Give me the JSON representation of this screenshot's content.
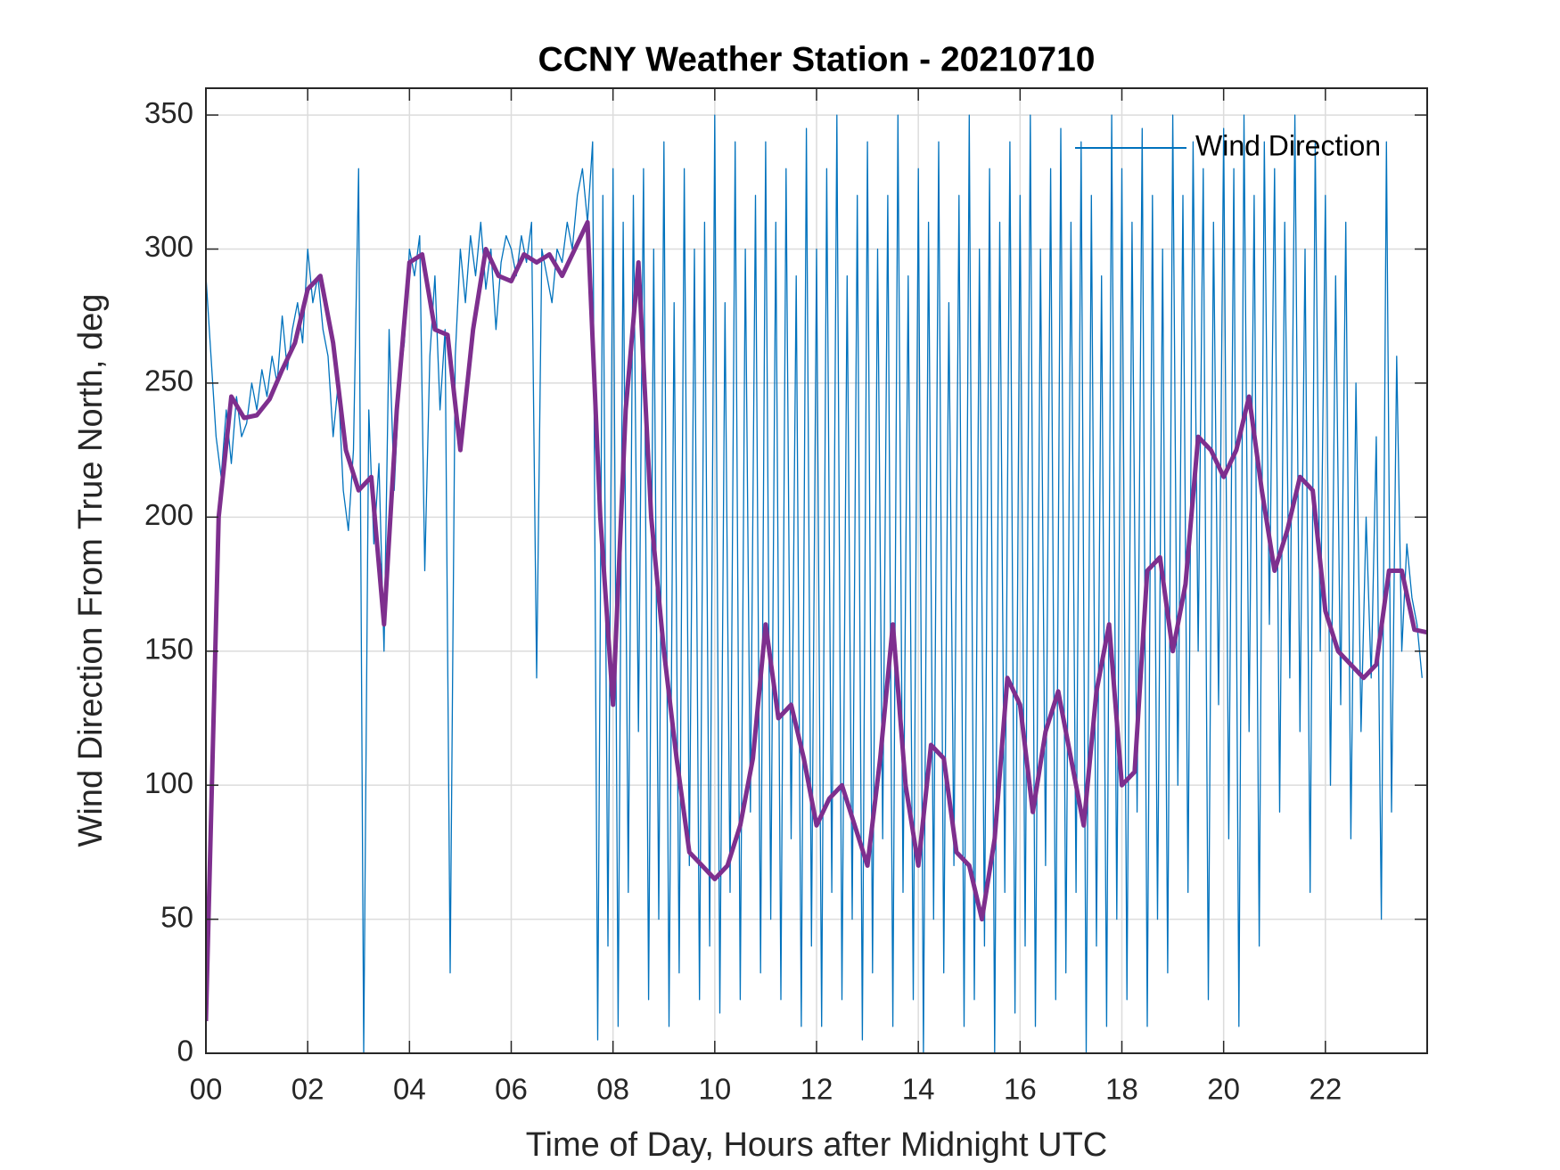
{
  "chart_data": {
    "type": "line",
    "title": "CCNY Weather Station - 20210710",
    "xlabel": "Time of Day, Hours after Midnight UTC",
    "ylabel": "Wind Direction From True North, deg",
    "xlim": [
      0,
      24
    ],
    "ylim": [
      0,
      360
    ],
    "xticks": [
      {
        "value": 0,
        "label": "00"
      },
      {
        "value": 2,
        "label": "02"
      },
      {
        "value": 4,
        "label": "04"
      },
      {
        "value": 6,
        "label": "06"
      },
      {
        "value": 8,
        "label": "08"
      },
      {
        "value": 10,
        "label": "10"
      },
      {
        "value": 12,
        "label": "12"
      },
      {
        "value": 14,
        "label": "14"
      },
      {
        "value": 16,
        "label": "16"
      },
      {
        "value": 18,
        "label": "18"
      },
      {
        "value": 20,
        "label": "20"
      },
      {
        "value": 22,
        "label": "22"
      }
    ],
    "yticks": [
      0,
      50,
      100,
      150,
      200,
      250,
      300,
      350
    ],
    "grid": true,
    "legend": "upper right",
    "series": [
      {
        "name": "Wind Direction",
        "color": "#0072bd",
        "width": 1.3,
        "x": [
          0,
          0.1,
          0.2,
          0.3,
          0.4,
          0.5,
          0.6,
          0.7,
          0.8,
          0.9,
          1,
          1.1,
          1.2,
          1.3,
          1.4,
          1.5,
          1.6,
          1.7,
          1.8,
          1.9,
          2,
          2.1,
          2.2,
          2.3,
          2.4,
          2.5,
          2.6,
          2.7,
          2.8,
          2.9,
          3,
          3.1,
          3.2,
          3.3,
          3.4,
          3.5,
          3.6,
          3.7,
          3.8,
          3.9,
          4,
          4.1,
          4.2,
          4.3,
          4.4,
          4.5,
          4.6,
          4.7,
          4.8,
          4.9,
          5,
          5.1,
          5.2,
          5.3,
          5.4,
          5.5,
          5.6,
          5.7,
          5.8,
          5.9,
          6,
          6.1,
          6.2,
          6.3,
          6.4,
          6.5,
          6.6,
          6.7,
          6.8,
          6.9,
          7,
          7.1,
          7.2,
          7.3,
          7.4,
          7.5,
          7.6,
          7.7,
          7.8,
          7.9,
          8,
          8.1,
          8.2,
          8.3,
          8.4,
          8.5,
          8.6,
          8.7,
          8.8,
          8.9,
          9,
          9.1,
          9.2,
          9.3,
          9.4,
          9.5,
          9.6,
          9.7,
          9.8,
          9.9,
          10,
          10.1,
          10.2,
          10.3,
          10.4,
          10.5,
          10.6,
          10.7,
          10.8,
          10.9,
          11,
          11.1,
          11.2,
          11.3,
          11.4,
          11.5,
          11.6,
          11.7,
          11.8,
          11.9,
          12,
          12.1,
          12.2,
          12.3,
          12.4,
          12.5,
          12.6,
          12.7,
          12.8,
          12.9,
          13,
          13.1,
          13.2,
          13.3,
          13.4,
          13.5,
          13.6,
          13.7,
          13.8,
          13.9,
          14,
          14.1,
          14.2,
          14.3,
          14.4,
          14.5,
          14.6,
          14.7,
          14.8,
          14.9,
          15,
          15.1,
          15.2,
          15.3,
          15.4,
          15.5,
          15.6,
          15.7,
          15.8,
          15.9,
          16,
          16.1,
          16.2,
          16.3,
          16.4,
          16.5,
          16.6,
          16.7,
          16.8,
          16.9,
          17,
          17.1,
          17.2,
          17.3,
          17.4,
          17.5,
          17.6,
          17.7,
          17.8,
          17.9,
          18,
          18.1,
          18.2,
          18.3,
          18.4,
          18.5,
          18.6,
          18.7,
          18.8,
          18.9,
          19,
          19.1,
          19.2,
          19.3,
          19.4,
          19.5,
          19.6,
          19.7,
          19.8,
          19.9,
          20,
          20.1,
          20.2,
          20.3,
          20.4,
          20.5,
          20.6,
          20.7,
          20.8,
          20.9,
          21,
          21.1,
          21.2,
          21.3,
          21.4,
          21.5,
          21.6,
          21.7,
          21.8,
          21.9,
          22,
          22.1,
          22.2,
          22.3,
          22.4,
          22.5,
          22.6,
          22.7,
          22.8,
          22.9,
          23,
          23.1,
          23.2,
          23.3,
          23.4,
          23.5,
          23.6,
          23.7,
          23.8,
          23.9
        ],
        "values": [
          290,
          260,
          230,
          215,
          240,
          220,
          245,
          230,
          235,
          250,
          240,
          255,
          245,
          260,
          250,
          275,
          255,
          270,
          280,
          265,
          300,
          280,
          290,
          270,
          260,
          230,
          250,
          210,
          195,
          225,
          330,
          0,
          240,
          190,
          220,
          150,
          270,
          210,
          250,
          265,
          300,
          290,
          305,
          180,
          260,
          290,
          240,
          270,
          30,
          260,
          300,
          280,
          305,
          290,
          310,
          285,
          300,
          270,
          295,
          305,
          300,
          290,
          305,
          295,
          310,
          140,
          300,
          290,
          280,
          300,
          295,
          310,
          300,
          320,
          330,
          310,
          340,
          5,
          320,
          40,
          330,
          10,
          310,
          60,
          320,
          120,
          330,
          20,
          300,
          50,
          340,
          10,
          280,
          30,
          330,
          70,
          300,
          20,
          310,
          40,
          350,
          15,
          280,
          60,
          340,
          20,
          300,
          90,
          320,
          30,
          340,
          50,
          310,
          20,
          330,
          80,
          290,
          10,
          345,
          40,
          300,
          10,
          330,
          60,
          350,
          20,
          290,
          50,
          320,
          5,
          340,
          30,
          300,
          80,
          320,
          10,
          350,
          60,
          290,
          20,
          330,
          0,
          310,
          50,
          340,
          30,
          280,
          70,
          320,
          10,
          350,
          20,
          300,
          40,
          330,
          0,
          310,
          60,
          340,
          15,
          320,
          40,
          350,
          10,
          300,
          70,
          330,
          20,
          345,
          30,
          310,
          60,
          340,
          0,
          320,
          40,
          290,
          10,
          350,
          50,
          330,
          20,
          310,
          90,
          345,
          10,
          320,
          50,
          300,
          30,
          350,
          100,
          320,
          60,
          340,
          150,
          330,
          20,
          310,
          130,
          345,
          80,
          330,
          10,
          350,
          120,
          320,
          40,
          340,
          160,
          330,
          90,
          310,
          140,
          350,
          120,
          300,
          60,
          340,
          150,
          320,
          100,
          290,
          130,
          310,
          80,
          250,
          120,
          200,
          140,
          230,
          50,
          340,
          90,
          260,
          150,
          190,
          170,
          160,
          140
        ]
      },
      {
        "color": "#7e2f8e",
        "width": 5,
        "x": [
          0,
          0.25,
          0.5,
          0.75,
          1,
          1.25,
          1.5,
          1.75,
          2,
          2.25,
          2.5,
          2.75,
          3,
          3.25,
          3.5,
          3.75,
          4,
          4.25,
          4.5,
          4.75,
          5,
          5.25,
          5.5,
          5.75,
          6,
          6.25,
          6.5,
          6.75,
          7,
          7.25,
          7.5,
          7.75,
          8,
          8.25,
          8.5,
          8.75,
          9,
          9.25,
          9.5,
          9.75,
          10,
          10.25,
          10.5,
          10.75,
          11,
          11.25,
          11.5,
          11.75,
          12,
          12.25,
          12.5,
          12.75,
          13,
          13.25,
          13.5,
          13.75,
          14,
          14.25,
          14.5,
          14.75,
          15,
          15.25,
          15.5,
          15.75,
          16,
          16.25,
          16.5,
          16.75,
          17,
          17.25,
          17.5,
          17.75,
          18,
          18.25,
          18.5,
          18.75,
          19,
          19.25,
          19.5,
          19.75,
          20,
          20.25,
          20.5,
          20.75,
          21,
          21.25,
          21.5,
          21.75,
          22,
          22.25,
          22.5,
          22.75,
          23,
          23.25,
          23.5,
          23.75,
          24
        ],
        "values": [
          12,
          200,
          245,
          237,
          238,
          244,
          255,
          265,
          285,
          290,
          265,
          225,
          210,
          215,
          160,
          240,
          295,
          298,
          270,
          268,
          225,
          270,
          300,
          290,
          288,
          298,
          295,
          298,
          290,
          300,
          310,
          200,
          130,
          240,
          295,
          200,
          150,
          110,
          75,
          70,
          65,
          70,
          85,
          110,
          160,
          125,
          130,
          110,
          85,
          95,
          100,
          85,
          70,
          110,
          160,
          100,
          70,
          115,
          110,
          75,
          70,
          50,
          80,
          140,
          130,
          90,
          120,
          135,
          110,
          85,
          135,
          160,
          100,
          105,
          180,
          185,
          150,
          175,
          230,
          225,
          215,
          225,
          245,
          210,
          180,
          195,
          215,
          210,
          165,
          150,
          145,
          140,
          145,
          180,
          180,
          158,
          157
        ]
      }
    ]
  }
}
